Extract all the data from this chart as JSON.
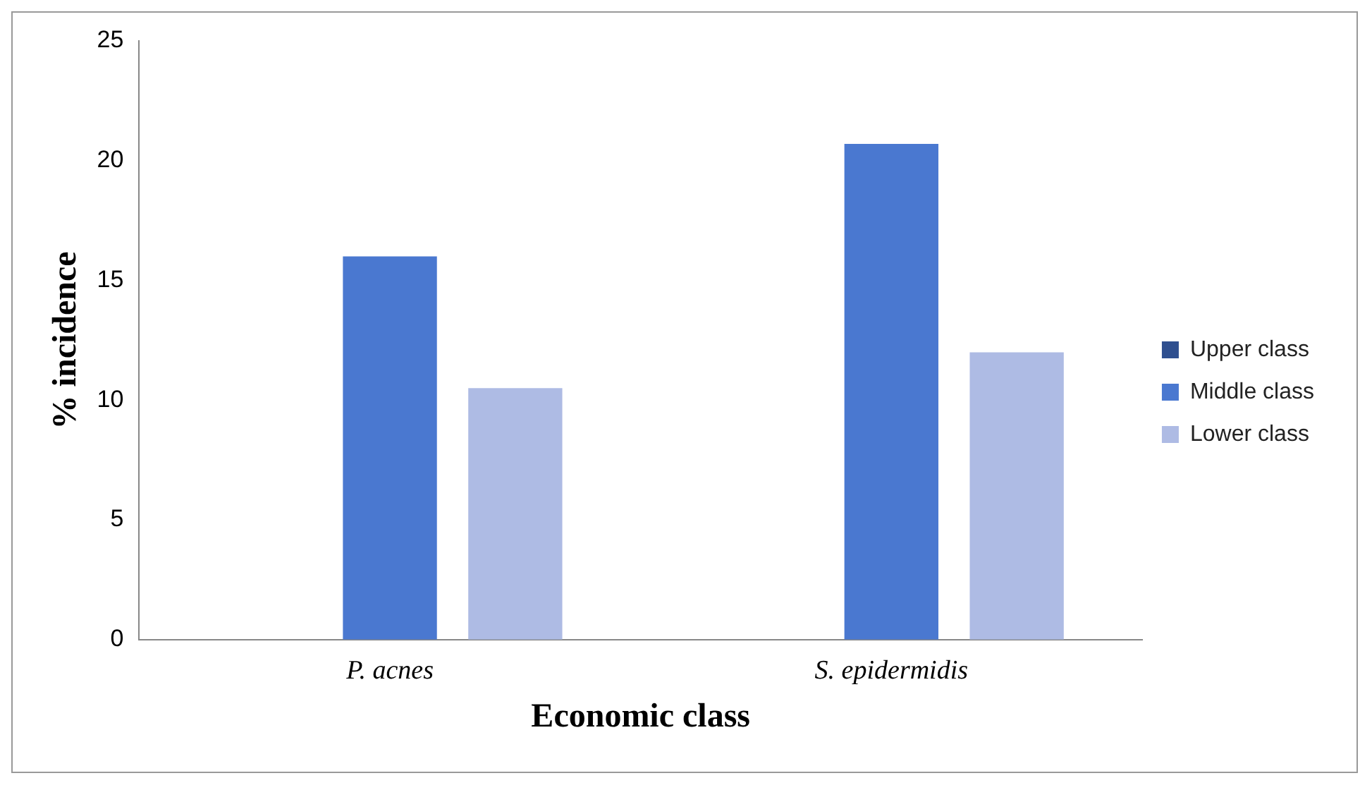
{
  "chart_data": {
    "type": "bar",
    "xlabel": "Economic class",
    "ylabel": "% incidence",
    "categories": [
      "P. acnes",
      "S. epidermidis"
    ],
    "series": [
      {
        "name": "Upper class",
        "color": "#2f4f8f",
        "values": [
          0,
          0
        ]
      },
      {
        "name": "Middle class",
        "color": "#4a78d0",
        "values": [
          16,
          20.7
        ]
      },
      {
        "name": "Lower class",
        "color": "#aebbe4",
        "values": [
          10.5,
          12
        ]
      }
    ],
    "ylim": [
      0,
      25
    ],
    "yticks": [
      0,
      5,
      10,
      15,
      20,
      25
    ],
    "grid": false,
    "legend": "right"
  }
}
